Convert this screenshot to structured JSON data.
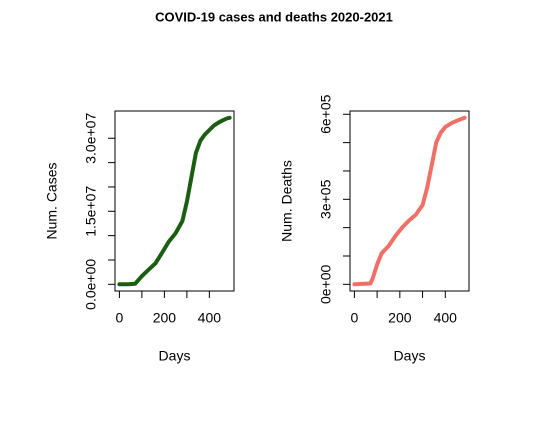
{
  "title": "COVID-19 cases and deaths 2020-2021",
  "chart_data": [
    {
      "type": "line",
      "xlabel": "Days",
      "ylabel": "Num. Cases",
      "color": "#1b5e12",
      "x": [
        0,
        40,
        70,
        100,
        130,
        160,
        190,
        220,
        250,
        280,
        300,
        320,
        340,
        360,
        380,
        400,
        420,
        440,
        460,
        480,
        490
      ],
      "values": [
        0,
        10000,
        100000,
        1700000,
        3000000,
        4300000,
        6500000,
        8800000,
        10500000,
        13000000,
        17000000,
        22000000,
        27000000,
        29500000,
        30800000,
        31700000,
        32600000,
        33200000,
        33700000,
        34100000,
        34200000
      ],
      "xlim": [
        -19.6,
        509.6
      ],
      "ylim": [
        -1370000,
        35600000
      ],
      "xticks": [
        0,
        {
          "value": 100,
          "label": null
        },
        200,
        {
          "value": 300,
          "label": null
        },
        400
      ],
      "yticks": [
        {
          "value": 0,
          "label": "0.0e+00"
        },
        {
          "value": 5000000,
          "label": null
        },
        {
          "value": 10000000,
          "label": null
        },
        {
          "value": 15000000,
          "label": "1.5e+07"
        },
        {
          "value": 20000000,
          "label": null
        },
        {
          "value": 25000000,
          "label": null
        },
        {
          "value": 30000000,
          "label": "3.0e+07"
        }
      ]
    },
    {
      "type": "line",
      "xlabel": "Days",
      "ylabel": "Num. Deaths",
      "color": "#f07068",
      "x": [
        0,
        70,
        80,
        100,
        120,
        150,
        180,
        210,
        240,
        270,
        300,
        320,
        340,
        360,
        380,
        400,
        430,
        460,
        485
      ],
      "values": [
        0,
        3000,
        20000,
        70000,
        110000,
        135000,
        170000,
        200000,
        225000,
        245000,
        280000,
        340000,
        420000,
        500000,
        535000,
        555000,
        570000,
        580000,
        588000
      ],
      "xlim": [
        -19.4,
        504.4
      ],
      "ylim": [
        -23500,
        611500
      ],
      "xticks": [
        0,
        {
          "value": 100,
          "label": null
        },
        200,
        {
          "value": 300,
          "label": null
        },
        400
      ],
      "yticks": [
        {
          "value": 0,
          "label": "0e+00"
        },
        {
          "value": 100000,
          "label": null
        },
        {
          "value": 200000,
          "label": null
        },
        {
          "value": 300000,
          "label": "3e+05"
        },
        {
          "value": 400000,
          "label": null
        },
        {
          "value": 500000,
          "label": null
        },
        {
          "value": 600000,
          "label": "6e+05"
        }
      ]
    }
  ]
}
